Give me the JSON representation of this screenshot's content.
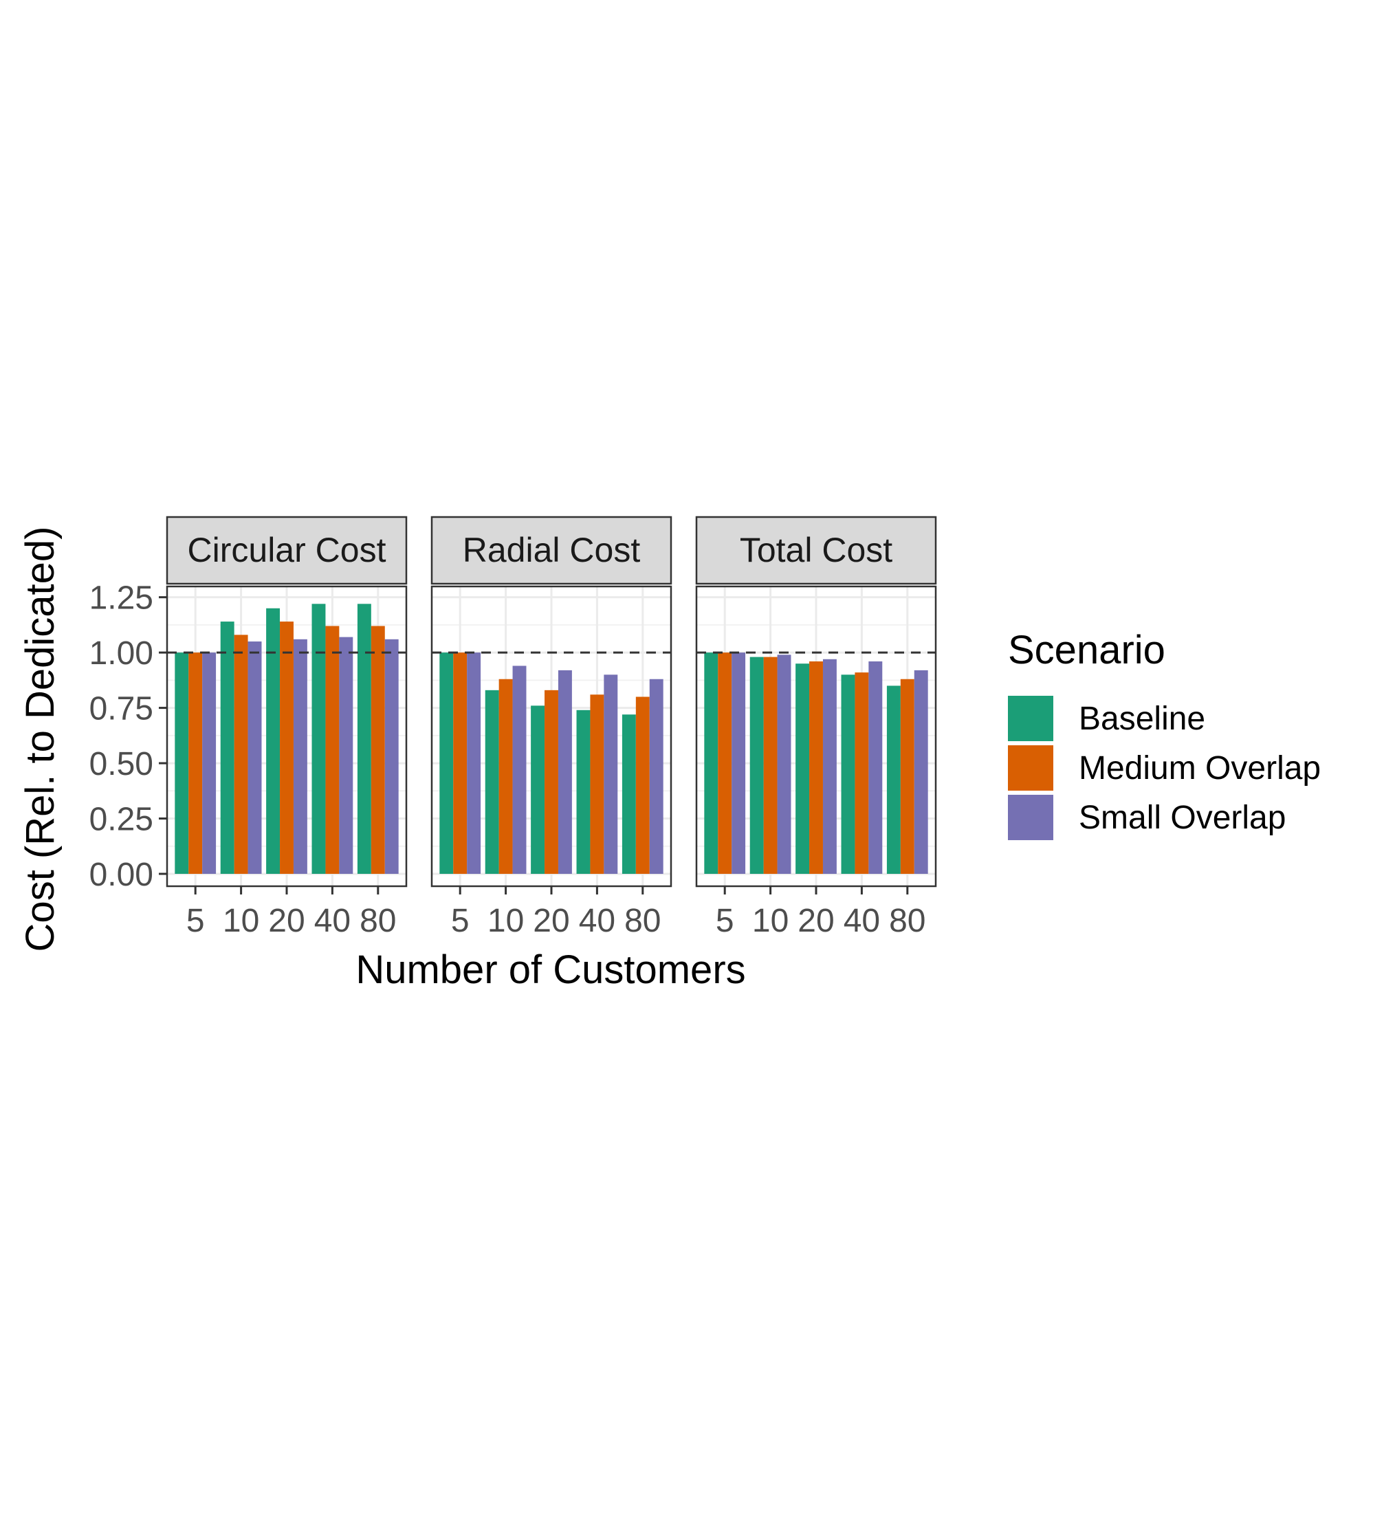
{
  "chart_data": {
    "type": "bar",
    "ylabel": "Cost (Rel. to Dedicated)",
    "xlabel": "Number of Customers",
    "categories": [
      "5",
      "10",
      "20",
      "40",
      "80"
    ],
    "ylim": [
      0,
      1.28
    ],
    "yticks": [
      "0.00",
      "0.25",
      "0.50",
      "0.75",
      "1.00",
      "1.25"
    ],
    "ytick_values": [
      0,
      0.25,
      0.5,
      0.75,
      1.0,
      1.25
    ],
    "reference_line": 1.0,
    "grid": true,
    "legend": {
      "title": "Scenario",
      "position": "right",
      "entries": [
        "Baseline",
        "Medium Overlap",
        "Small Overlap"
      ]
    },
    "colors": {
      "Baseline": "#1b9e77",
      "Medium Overlap": "#d95f02",
      "Small Overlap": "#7570b3"
    },
    "panels": [
      {
        "title": "Circular Cost",
        "series": [
          {
            "name": "Baseline",
            "values": [
              1.0,
              1.14,
              1.2,
              1.22,
              1.22
            ]
          },
          {
            "name": "Medium Overlap",
            "values": [
              1.0,
              1.08,
              1.14,
              1.12,
              1.12
            ]
          },
          {
            "name": "Small Overlap",
            "values": [
              1.0,
              1.05,
              1.06,
              1.07,
              1.06
            ]
          }
        ]
      },
      {
        "title": "Radial Cost",
        "series": [
          {
            "name": "Baseline",
            "values": [
              1.0,
              0.83,
              0.76,
              0.74,
              0.72
            ]
          },
          {
            "name": "Medium Overlap",
            "values": [
              1.0,
              0.88,
              0.83,
              0.81,
              0.8
            ]
          },
          {
            "name": "Small Overlap",
            "values": [
              1.0,
              0.94,
              0.92,
              0.9,
              0.88
            ]
          }
        ]
      },
      {
        "title": "Total Cost",
        "series": [
          {
            "name": "Baseline",
            "values": [
              1.0,
              0.98,
              0.95,
              0.9,
              0.85
            ]
          },
          {
            "name": "Medium Overlap",
            "values": [
              1.0,
              0.98,
              0.96,
              0.91,
              0.88
            ]
          },
          {
            "name": "Small Overlap",
            "values": [
              1.0,
              0.99,
              0.97,
              0.96,
              0.92
            ]
          }
        ]
      }
    ]
  }
}
